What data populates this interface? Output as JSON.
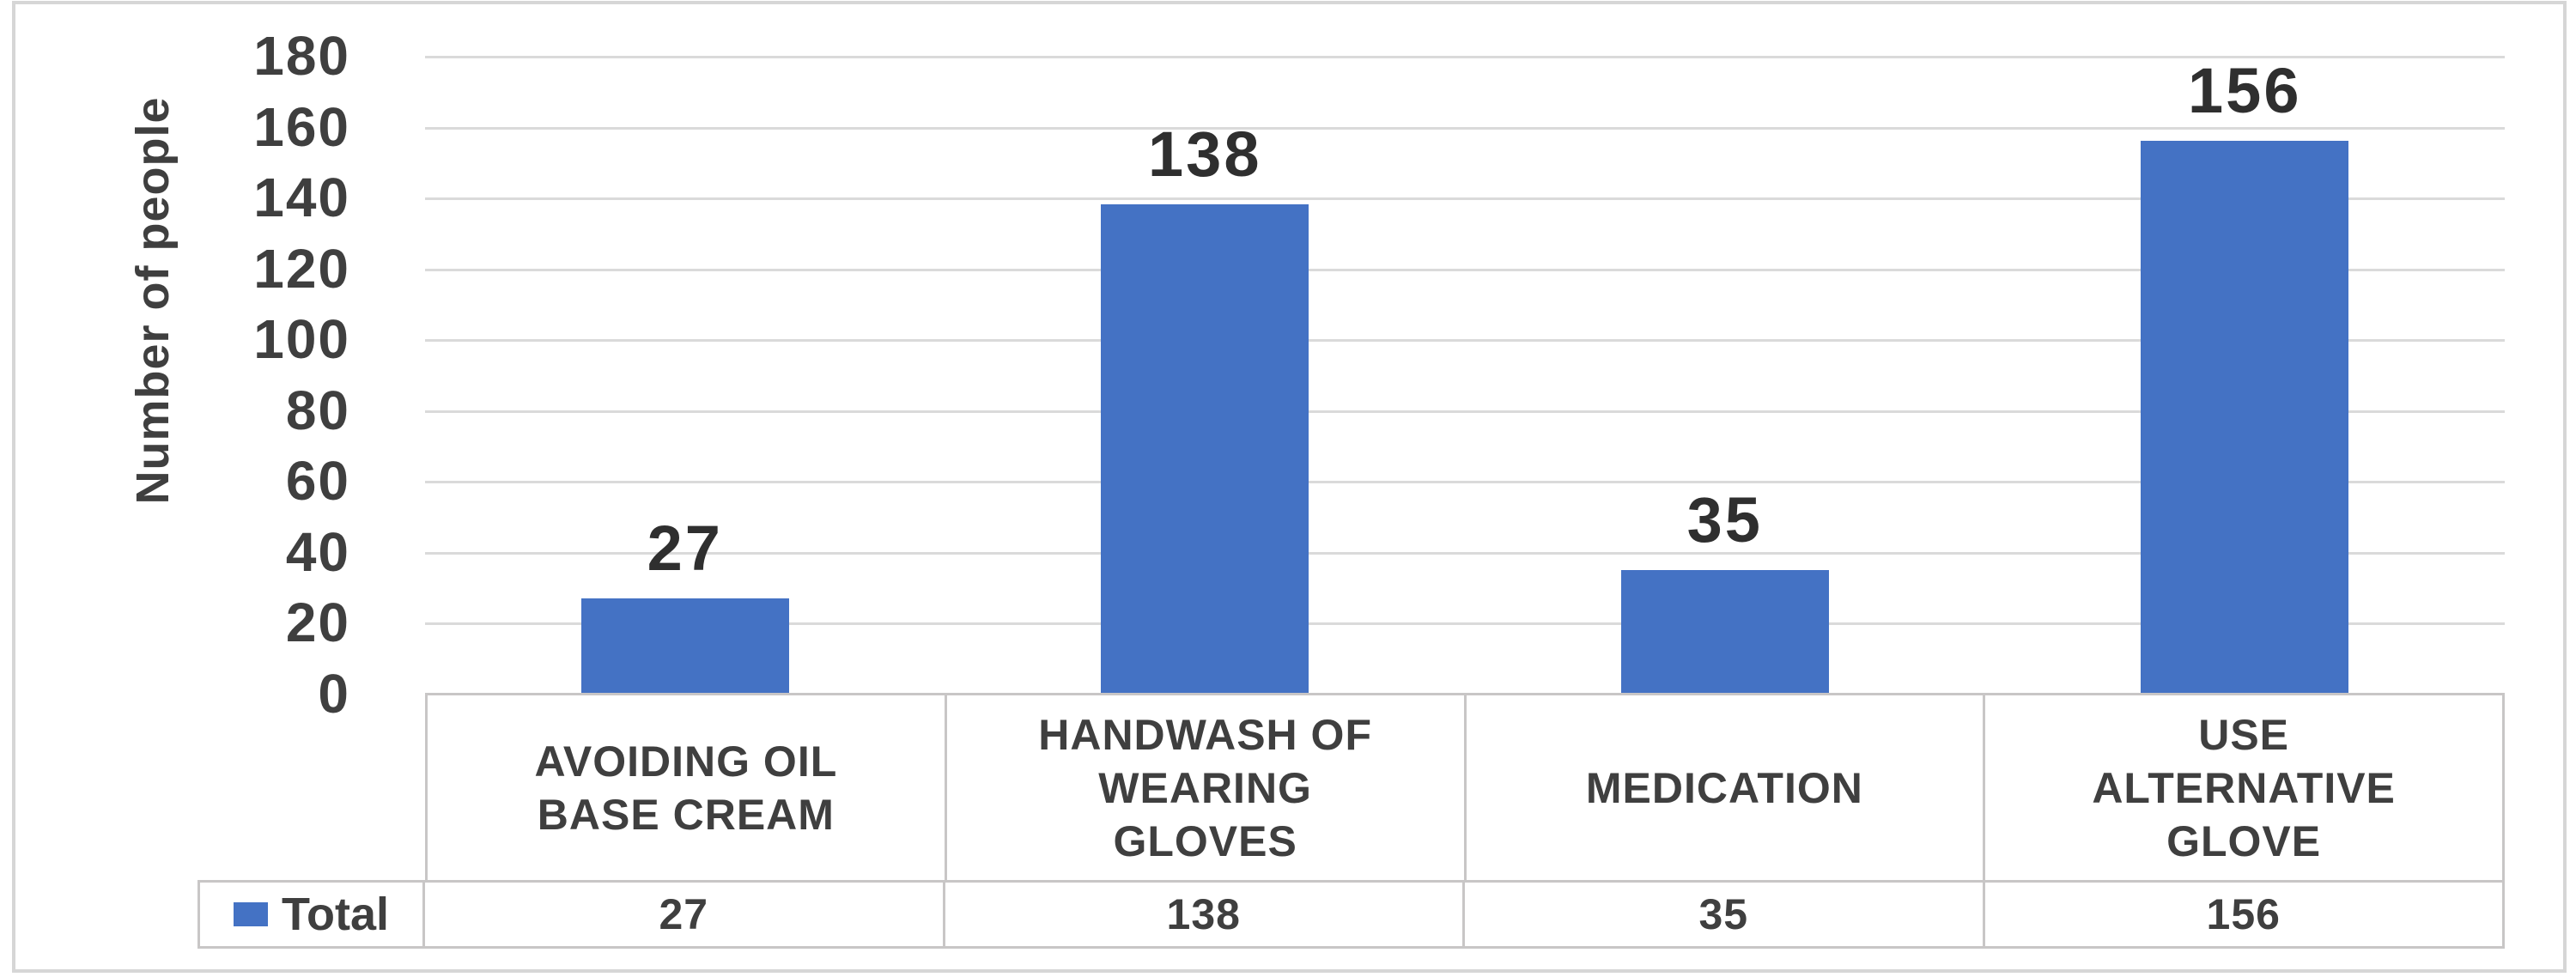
{
  "chart_data": {
    "type": "bar",
    "title": "",
    "xlabel": "",
    "ylabel": "Number of people",
    "categories": [
      "AVOIDING OIL BASE CREAM",
      "HANDWASH OF WEARING GLOVES",
      "MEDICATION",
      "USE ALTERNATIVE GLOVE"
    ],
    "series": [
      {
        "name": "Total",
        "values": [
          27,
          138,
          35,
          156
        ]
      }
    ],
    "data_labels_shown": [
      27,
      138,
      35,
      156
    ],
    "ylim": [
      0,
      180
    ],
    "ytick_step": 20,
    "yticks": [
      0,
      20,
      40,
      60,
      80,
      100,
      120,
      140,
      160,
      180
    ],
    "grid": true,
    "legend_position": "data-table-bottom-left",
    "has_data_table": true
  },
  "colors": {
    "bar": "#4472C4",
    "gridline": "#DADADA",
    "table_border": "#C8C6C6",
    "chart_border": "#D6D6D6",
    "text": "#3F3F3F",
    "data_label_text": "#2F2F2F",
    "background": "#FFFFFF"
  }
}
